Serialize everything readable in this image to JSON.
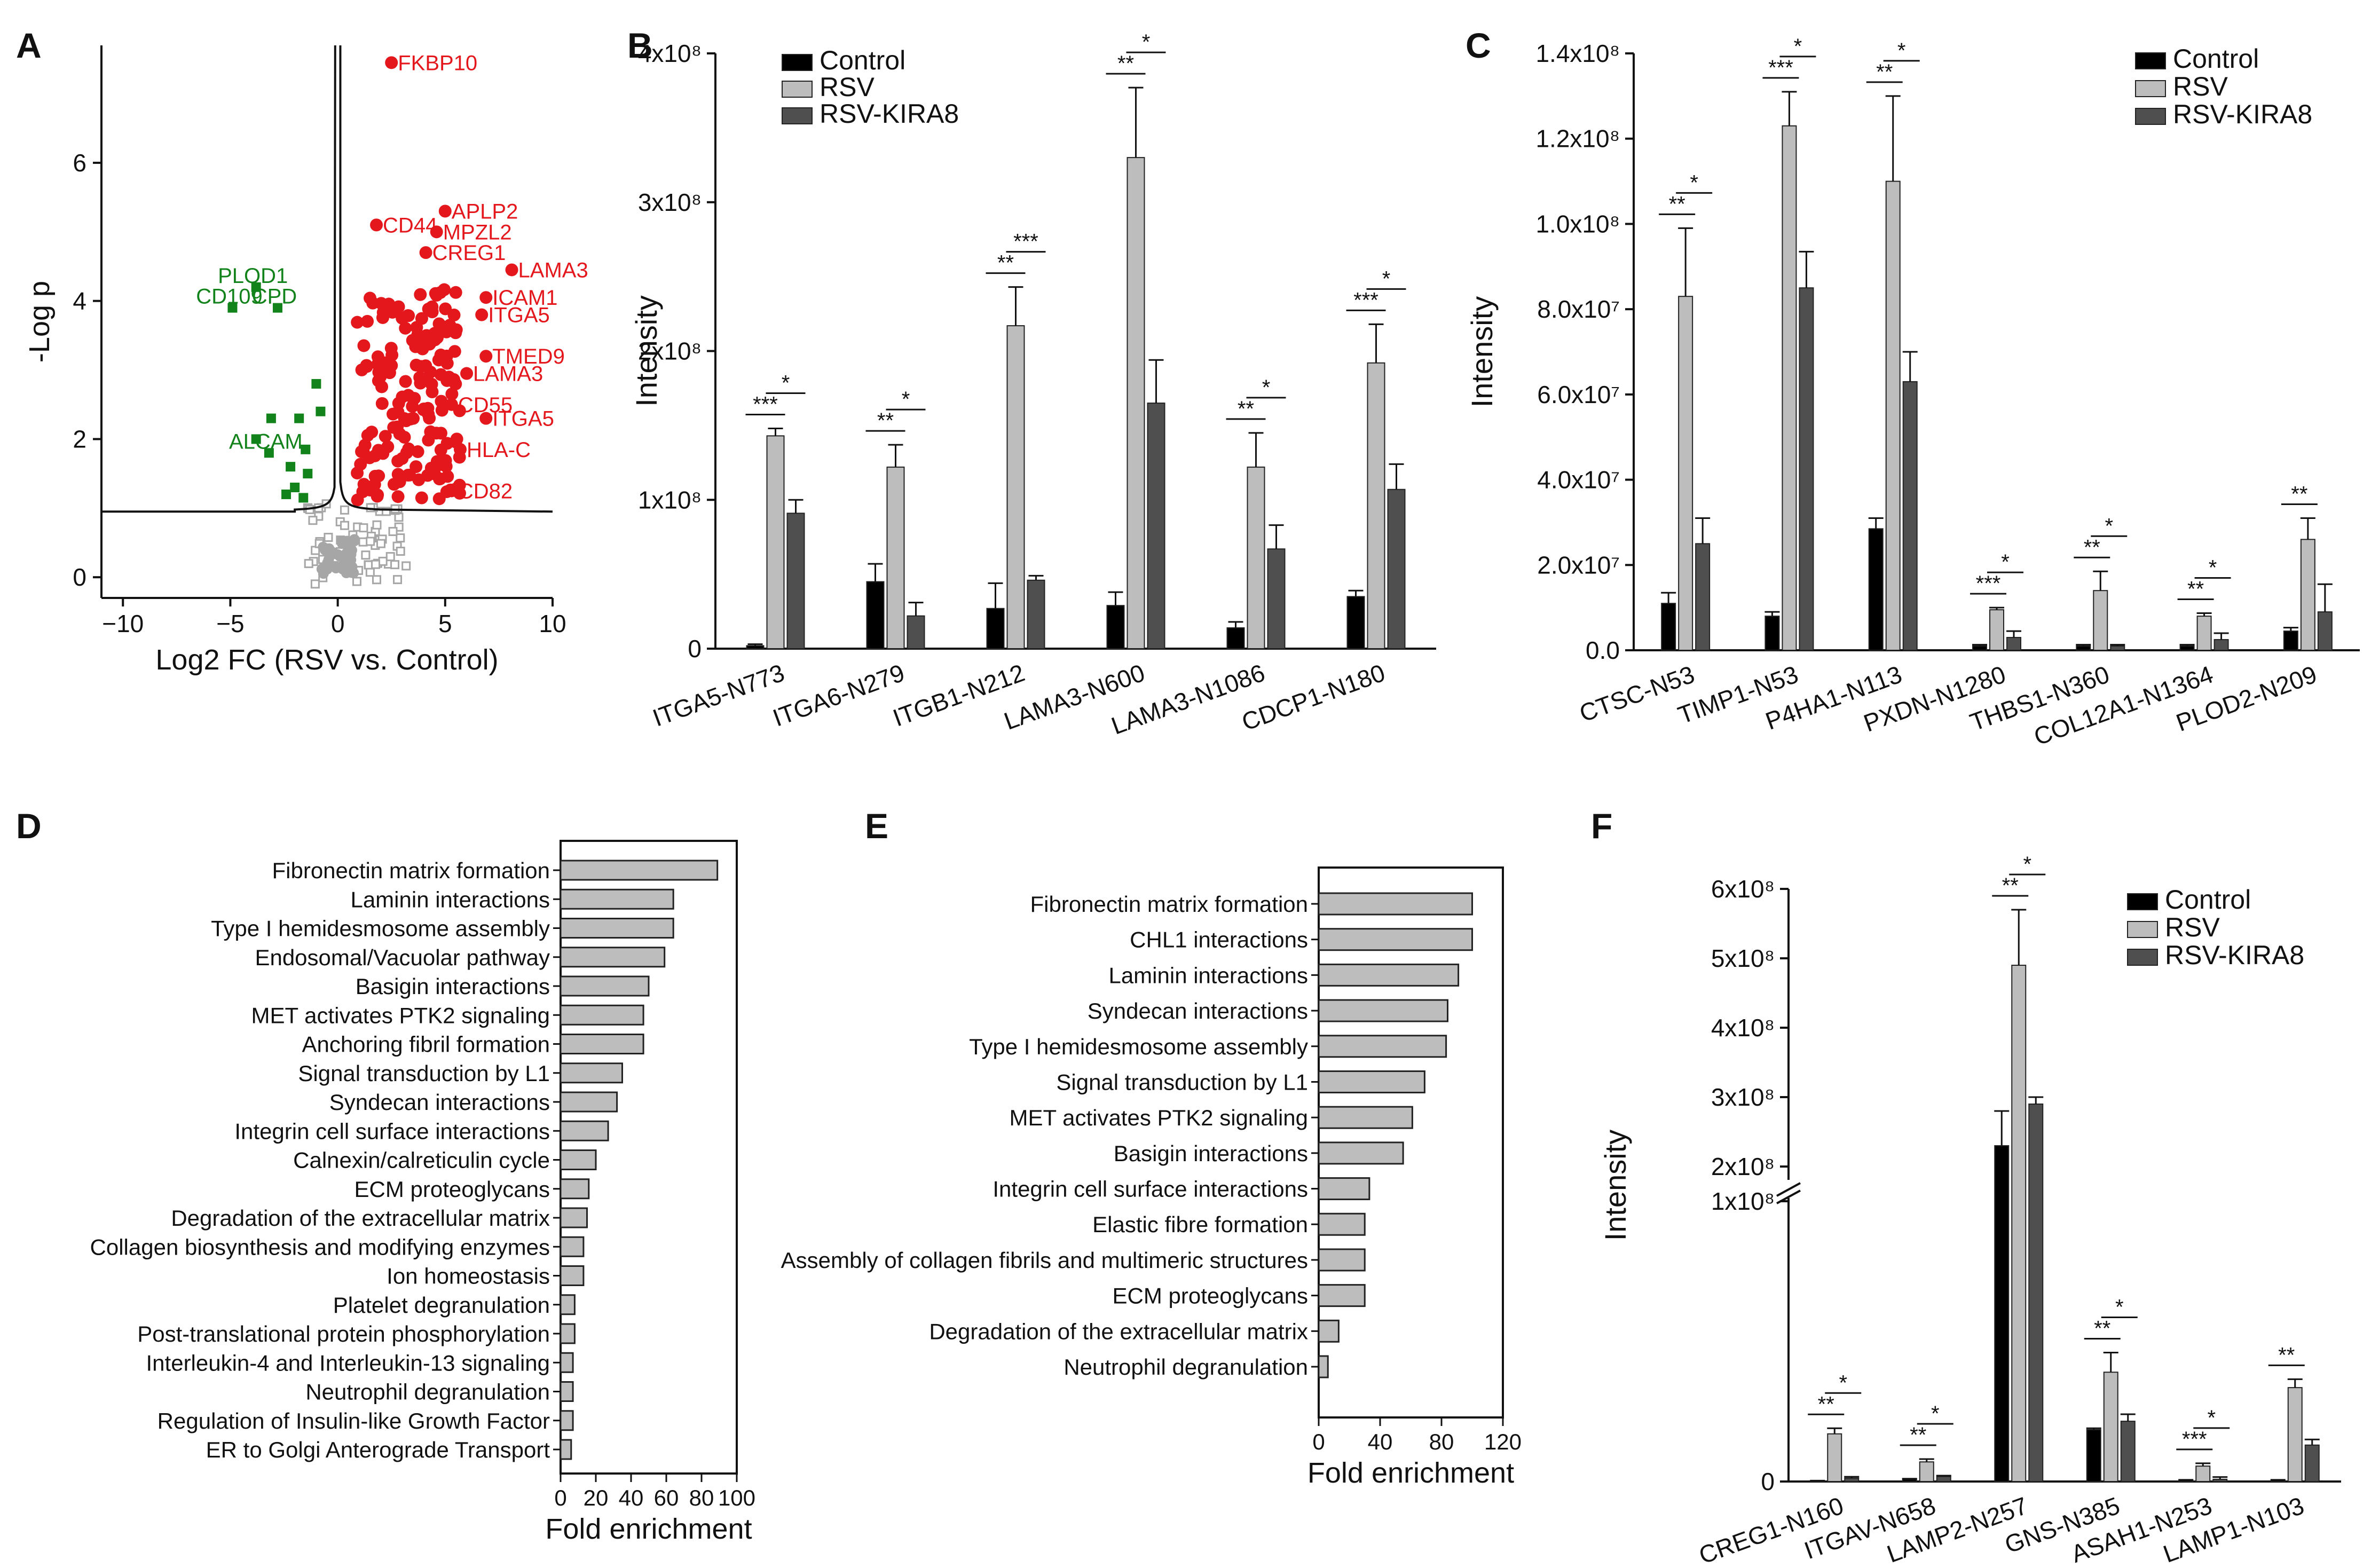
{
  "colors": {
    "control": "#000000",
    "rsv": "#bdbdbd",
    "kira8": "#4f4f4f",
    "up": "#e3171c",
    "down": "#12821a",
    "ns": "#a6a6a6",
    "hbar": "#bdbdbd"
  },
  "chart_data": [
    {
      "panel": "A",
      "type": "scatter",
      "xlabel": "Log2 FC (RSV vs. Control)",
      "ylabel": "-Log p",
      "xlim": [
        -11,
        10
      ],
      "ylim": [
        -0.3,
        7.7
      ],
      "xticks": [
        "−10",
        "−5",
        "0",
        "5",
        "10"
      ],
      "xtick_values": [
        -10,
        -5,
        0,
        5,
        10
      ],
      "yticks": [
        "0",
        "2",
        "4",
        "6"
      ],
      "ytick_values": [
        0,
        2,
        4,
        6
      ],
      "labels_up": [
        {
          "text": "FKBP10",
          "x": 2.5,
          "y": 7.45
        },
        {
          "text": "APLP2",
          "x": 5.0,
          "y": 5.3
        },
        {
          "text": "CD44",
          "x": 1.8,
          "y": 5.1
        },
        {
          "text": "MPZL2",
          "x": 4.6,
          "y": 5.0
        },
        {
          "text": "CREG1",
          "x": 4.1,
          "y": 4.7
        },
        {
          "text": "LAMA3",
          "x": 8.1,
          "y": 4.45
        },
        {
          "text": "ICAM1",
          "x": 6.9,
          "y": 4.05
        },
        {
          "text": "ITGA5",
          "x": 6.7,
          "y": 3.8
        },
        {
          "text": "TMED9",
          "x": 6.9,
          "y": 3.2
        },
        {
          "text": "LAMA3",
          "x": 6.0,
          "y": 2.95
        },
        {
          "text": "CD55",
          "x": 5.3,
          "y": 2.5
        },
        {
          "text": "ITGA5",
          "x": 6.9,
          "y": 2.3
        },
        {
          "text": "HLA-C",
          "x": 5.7,
          "y": 1.85
        },
        {
          "text": "CD82",
          "x": 5.3,
          "y": 1.25
        }
      ],
      "labels_down": [
        {
          "text": "PLOD1",
          "x": -3.8,
          "y": 4.2
        },
        {
          "text": "CD109",
          "x": -4.9,
          "y": 3.9
        },
        {
          "text": "CPD",
          "x": -2.8,
          "y": 3.9
        },
        {
          "text": "ALCAM",
          "x": -3.2,
          "y": 1.8
        }
      ],
      "down_points": [
        [
          -4.9,
          3.9
        ],
        [
          -3.8,
          4.2
        ],
        [
          -2.8,
          3.9
        ],
        [
          -1.0,
          2.8
        ],
        [
          -3.1,
          2.3
        ],
        [
          -1.8,
          2.3
        ],
        [
          -1.5,
          1.85
        ],
        [
          -2.2,
          1.6
        ],
        [
          -3.8,
          2.0
        ],
        [
          -1.4,
          1.5
        ],
        [
          -2.4,
          1.2
        ],
        [
          -1.6,
          1.15
        ],
        [
          -0.8,
          2.4
        ],
        [
          -2.0,
          1.3
        ],
        [
          -3.2,
          1.8
        ]
      ]
    },
    {
      "panel": "B",
      "type": "bar",
      "ylabel": "Intensity",
      "ylim": [
        0,
        400000000
      ],
      "yticks": [
        "0",
        "1x10⁸",
        "2x10⁸",
        "3x10⁸",
        "4x10⁸"
      ],
      "categories": [
        "ITGA5-N773",
        "ITGA6-N279",
        "ITGB1-N212",
        "LAMA3-N600",
        "LAMA3-N1086",
        "CDCP1-N180"
      ],
      "series": [
        {
          "name": "Control",
          "values": [
            2000000,
            45000000,
            27000000,
            29000000,
            14000000,
            35000000
          ],
          "errors": [
            1000000,
            12000000,
            17000000,
            9000000,
            4000000,
            4000000
          ]
        },
        {
          "name": "RSV",
          "values": [
            143000000,
            122000000,
            217000000,
            330000000,
            122000000,
            192000000
          ],
          "errors": [
            5000000,
            15000000,
            26000000,
            47000000,
            23000000,
            26000000
          ]
        },
        {
          "name": "RSV-KIRA8",
          "values": [
            91000000,
            22000000,
            46000000,
            165000000,
            67000000,
            107000000
          ],
          "errors": [
            9000000,
            9000000,
            3000000,
            29000000,
            16000000,
            17000000
          ]
        }
      ],
      "significance": [
        {
          "a": "***",
          "b": "*"
        },
        {
          "a": "**",
          "b": "*"
        },
        {
          "a": "**",
          "b": "***"
        },
        {
          "a": "**",
          "b": "*"
        },
        {
          "a": "**",
          "b": "*"
        },
        {
          "a": "***",
          "b": "*"
        }
      ],
      "legend": "top-left"
    },
    {
      "panel": "C",
      "type": "bar",
      "ylabel": "Intensity",
      "ylim": [
        0,
        140000000
      ],
      "yticks": [
        "0.0",
        "2.0x10⁷",
        "4.0x10⁷",
        "6.0x10⁷",
        "8.0x10⁷",
        "1.0x10⁸",
        "1.2x10⁸",
        "1.4x10⁸"
      ],
      "categories": [
        "CTSC-N53",
        "TIMP1-N53",
        "P4HA1-N113",
        "PXDN-N1280",
        "THBS1-N360",
        "COL12A1-N1364",
        "PLOD2-N209"
      ],
      "series": [
        {
          "name": "Control",
          "values": [
            11000000,
            8000000,
            28500000,
            1000000,
            1000000,
            1000000,
            4500000
          ],
          "errors": [
            2500000,
            1000000,
            2500000,
            300000,
            300000,
            300000,
            800000
          ]
        },
        {
          "name": "RSV",
          "values": [
            83000000,
            123000000,
            110000000,
            9500000,
            14000000,
            8000000,
            26000000
          ],
          "errors": [
            16000000,
            8000000,
            20000000,
            500000,
            4500000,
            700000,
            5000000
          ]
        },
        {
          "name": "RSV-KIRA8",
          "values": [
            25000000,
            85000000,
            63000000,
            3000000,
            1000000,
            2500000,
            9000000
          ],
          "errors": [
            6000000,
            8500000,
            7000000,
            1500000,
            300000,
            1500000,
            6500000
          ]
        }
      ],
      "significance": [
        {
          "a": "**",
          "b": "*"
        },
        {
          "a": "***",
          "b": "*"
        },
        {
          "a": "**",
          "b": "*"
        },
        {
          "a": "***",
          "b": "*"
        },
        {
          "a": "**",
          "b": "*"
        },
        {
          "a": "**",
          "b": "*"
        },
        {
          "a": "**",
          "b": ""
        }
      ],
      "legend": "top-right"
    },
    {
      "panel": "D",
      "type": "bar",
      "orientation": "horizontal",
      "xlabel": "Fold enrichment",
      "xlim": [
        0,
        100
      ],
      "xticks": [
        "0",
        "20",
        "40",
        "60",
        "80",
        "100"
      ],
      "xtick_values": [
        0,
        20,
        40,
        60,
        80,
        100
      ],
      "categories": [
        "Fibronectin matrix formation",
        "Laminin interactions",
        "Type I hemidesmosome assembly",
        "Endosomal/Vacuolar pathway",
        "Basigin interactions",
        "MET activates PTK2 signaling",
        "Anchoring fibril formation",
        "Signal transduction by L1",
        "Syndecan interactions",
        "Integrin cell surface interactions",
        "Calnexin/calreticulin cycle",
        "ECM proteoglycans",
        "Degradation of the extracellular matrix",
        "Collagen biosynthesis and modifying enzymes",
        "Ion homeostasis",
        "Platelet degranulation",
        "Post-translational protein phosphorylation",
        "Interleukin-4 and Interleukin-13 signaling",
        "Neutrophil degranulation",
        "Regulation of Insulin-like Growth Factor",
        "ER to Golgi Anterograde Transport"
      ],
      "values": [
        89,
        64,
        64,
        59,
        50,
        47,
        47,
        35,
        32,
        27,
        20,
        16,
        15,
        13,
        13,
        8,
        8,
        7,
        7,
        7,
        6
      ]
    },
    {
      "panel": "E",
      "type": "bar",
      "orientation": "horizontal",
      "xlabel": "Fold enrichment",
      "xlim": [
        0,
        120
      ],
      "xticks": [
        "0",
        "40",
        "80",
        "120"
      ],
      "xtick_values": [
        0,
        40,
        80,
        120
      ],
      "categories": [
        "Fibronectin matrix formation",
        "CHL1 interactions",
        "Laminin interactions",
        "Syndecan interactions",
        "Type I hemidesmosome assembly",
        "Signal transduction by L1",
        "MET activates PTK2 signaling",
        "Basigin interactions",
        "Integrin cell surface interactions",
        "Elastic fibre formation",
        "Assembly of collagen fibrils and multimeric structures",
        "ECM proteoglycans",
        "Degradation of the extracellular matrix",
        "Neutrophil degranulation"
      ],
      "values": [
        100,
        100,
        91,
        84,
        83,
        69,
        61,
        55,
        33,
        30,
        30,
        30,
        13,
        6
      ]
    },
    {
      "panel": "F",
      "type": "bar",
      "ylabel": "Intensity",
      "broken_axis": true,
      "yticks": [
        "0",
        "1x10⁸",
        "2x10⁸",
        "3x10⁸",
        "4x10⁸",
        "5x10⁸",
        "6x10⁸"
      ],
      "categories": [
        "CREG1-N160",
        "ITGAV-N658",
        "LAMP2-N257",
        "GNS-N385",
        "ASAH1-N253",
        "LAMP1-N103"
      ],
      "series": [
        {
          "name": "Control",
          "values": [
            200000,
            800000,
            230000000,
            18500000,
            500000,
            500000
          ],
          "errors": [
            100000,
            200000,
            50000000,
            500000,
            100000,
            100000
          ]
        },
        {
          "name": "RSV",
          "values": [
            17000000,
            7000000,
            490000000,
            39000000,
            5500000,
            33500000
          ],
          "errors": [
            2000000,
            1000000,
            80000000,
            7000000,
            1000000,
            3000000
          ]
        },
        {
          "name": "RSV-KIRA8",
          "values": [
            1200000,
            1800000,
            290000000,
            21500000,
            800000,
            13000000
          ],
          "errors": [
            500000,
            300000,
            10000000,
            2500000,
            800000,
            2000000
          ]
        }
      ],
      "significance": [
        {
          "a": "**",
          "b": "*"
        },
        {
          "a": "**",
          "b": "*"
        },
        {
          "a": "**",
          "b": "*"
        },
        {
          "a": "**",
          "b": "*"
        },
        {
          "a": "***",
          "b": "*"
        },
        {
          "a": "**",
          "b": ""
        }
      ],
      "legend": "top-right"
    }
  ]
}
